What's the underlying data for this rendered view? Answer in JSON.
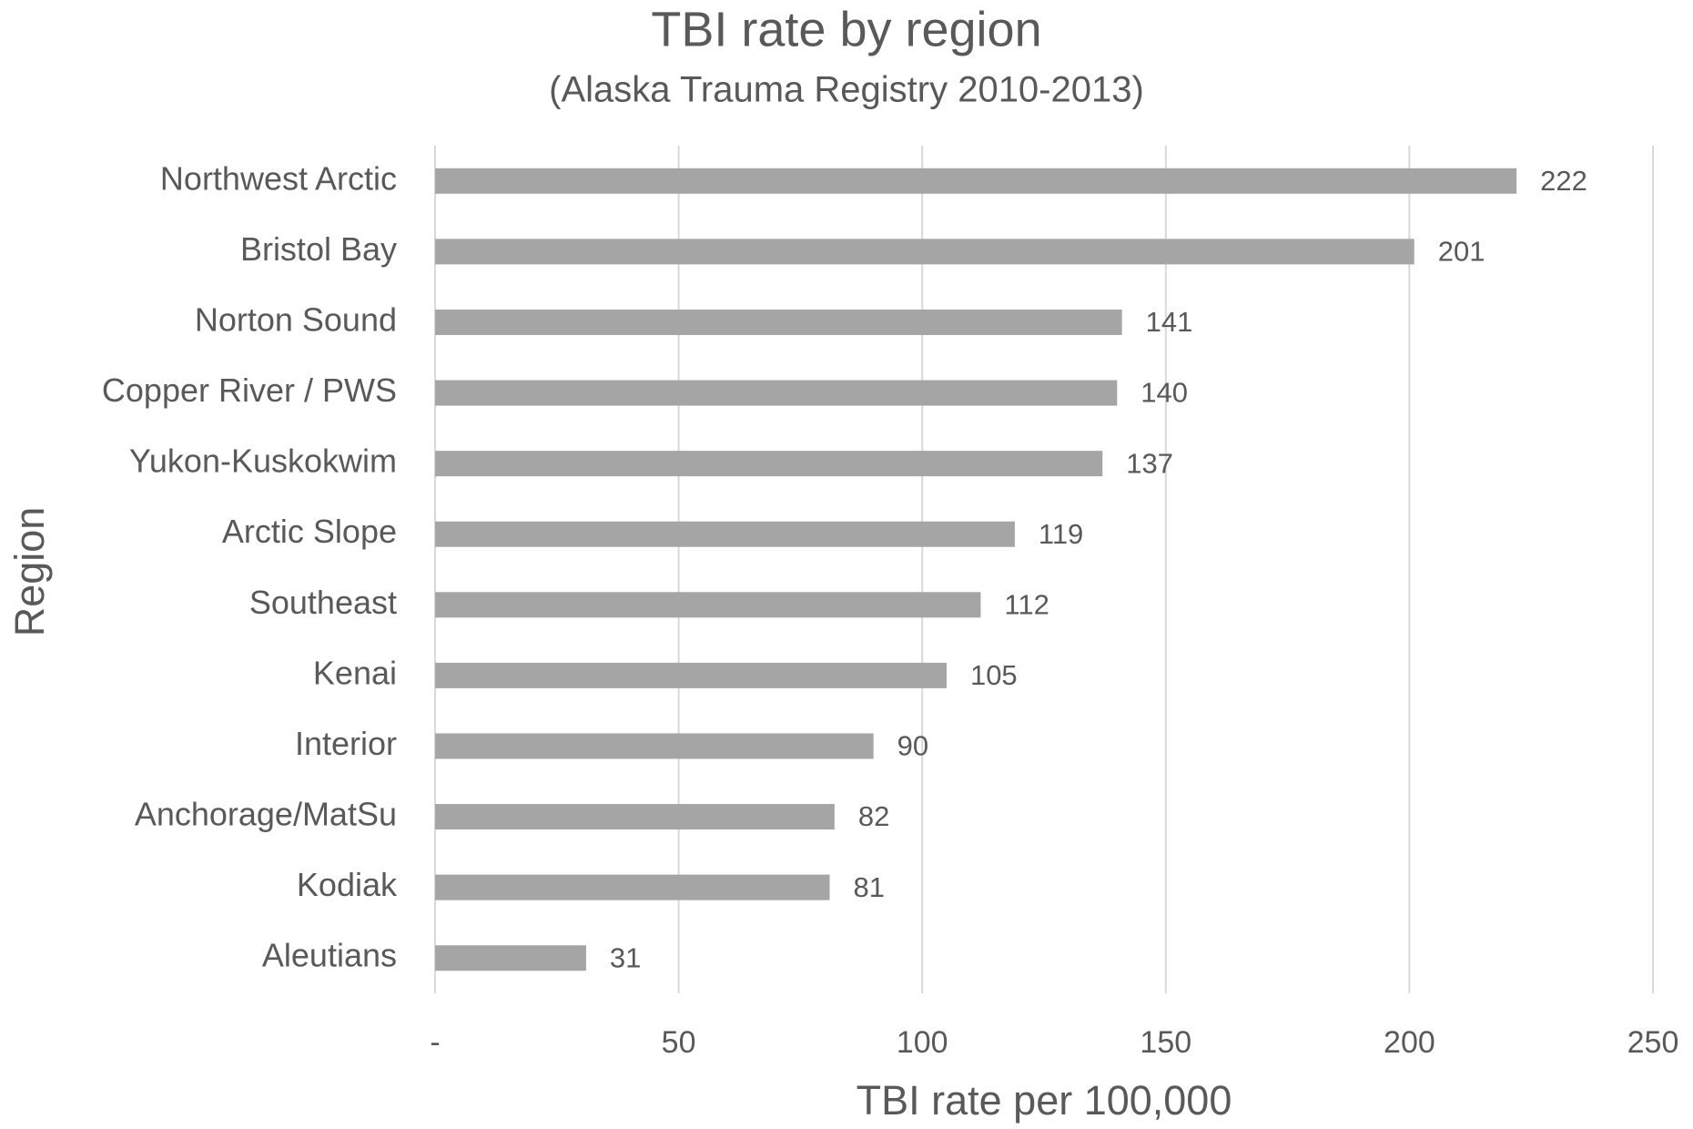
{
  "chart_data": {
    "type": "bar",
    "orientation": "horizontal",
    "title": "TBI rate by region",
    "subtitle": "(Alaska Trauma Registry 2010-2013)",
    "x_label": "TBI rate per 100,000",
    "y_label": "Region",
    "categories": [
      "Northwest Arctic",
      "Bristol Bay",
      "Norton Sound",
      "Copper River / PWS",
      "Yukon-Kuskokwim",
      "Arctic Slope",
      "Southeast",
      "Kenai",
      "Interior",
      "Anchorage/MatSu",
      "Kodiak",
      "Aleutians"
    ],
    "values": [
      222,
      201,
      141,
      140,
      137,
      119,
      112,
      105,
      90,
      82,
      81,
      31
    ],
    "color": "#a5a5a5",
    "xlim": [
      0,
      250
    ],
    "xticks": [
      {
        "value": 0,
        "label": "-"
      },
      50,
      100,
      150,
      200,
      250
    ],
    "grid": true
  }
}
